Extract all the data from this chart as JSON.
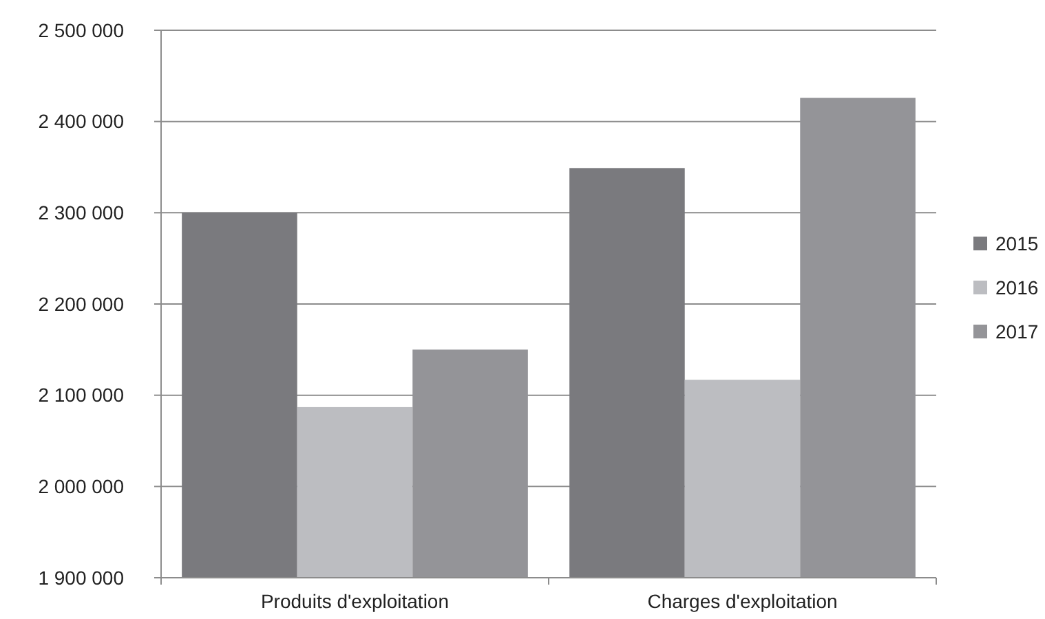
{
  "chart_data": {
    "type": "bar",
    "categories": [
      "Produits d'exploitation",
      "Charges d'exploitation"
    ],
    "series": [
      {
        "name": "2015",
        "color": "#7a7a7e",
        "values": [
          2300000,
          2349000
        ]
      },
      {
        "name": "2016",
        "color": "#bcbdc1",
        "values": [
          2087000,
          2117000
        ]
      },
      {
        "name": "2017",
        "color": "#949498",
        "values": [
          2150000,
          2426000
        ]
      }
    ],
    "ylim": [
      1900000,
      2500000
    ],
    "yticks": [
      {
        "value": 1900000,
        "label": "1 900 000"
      },
      {
        "value": 2000000,
        "label": "2 000 000"
      },
      {
        "value": 2100000,
        "label": "2 100 000"
      },
      {
        "value": 2200000,
        "label": "2 200 000"
      },
      {
        "value": 2300000,
        "label": "2 300 000"
      },
      {
        "value": 2400000,
        "label": "2 400 000"
      },
      {
        "value": 2500000,
        "label": "2 500 000"
      }
    ],
    "grid": "y",
    "legend": "right"
  }
}
